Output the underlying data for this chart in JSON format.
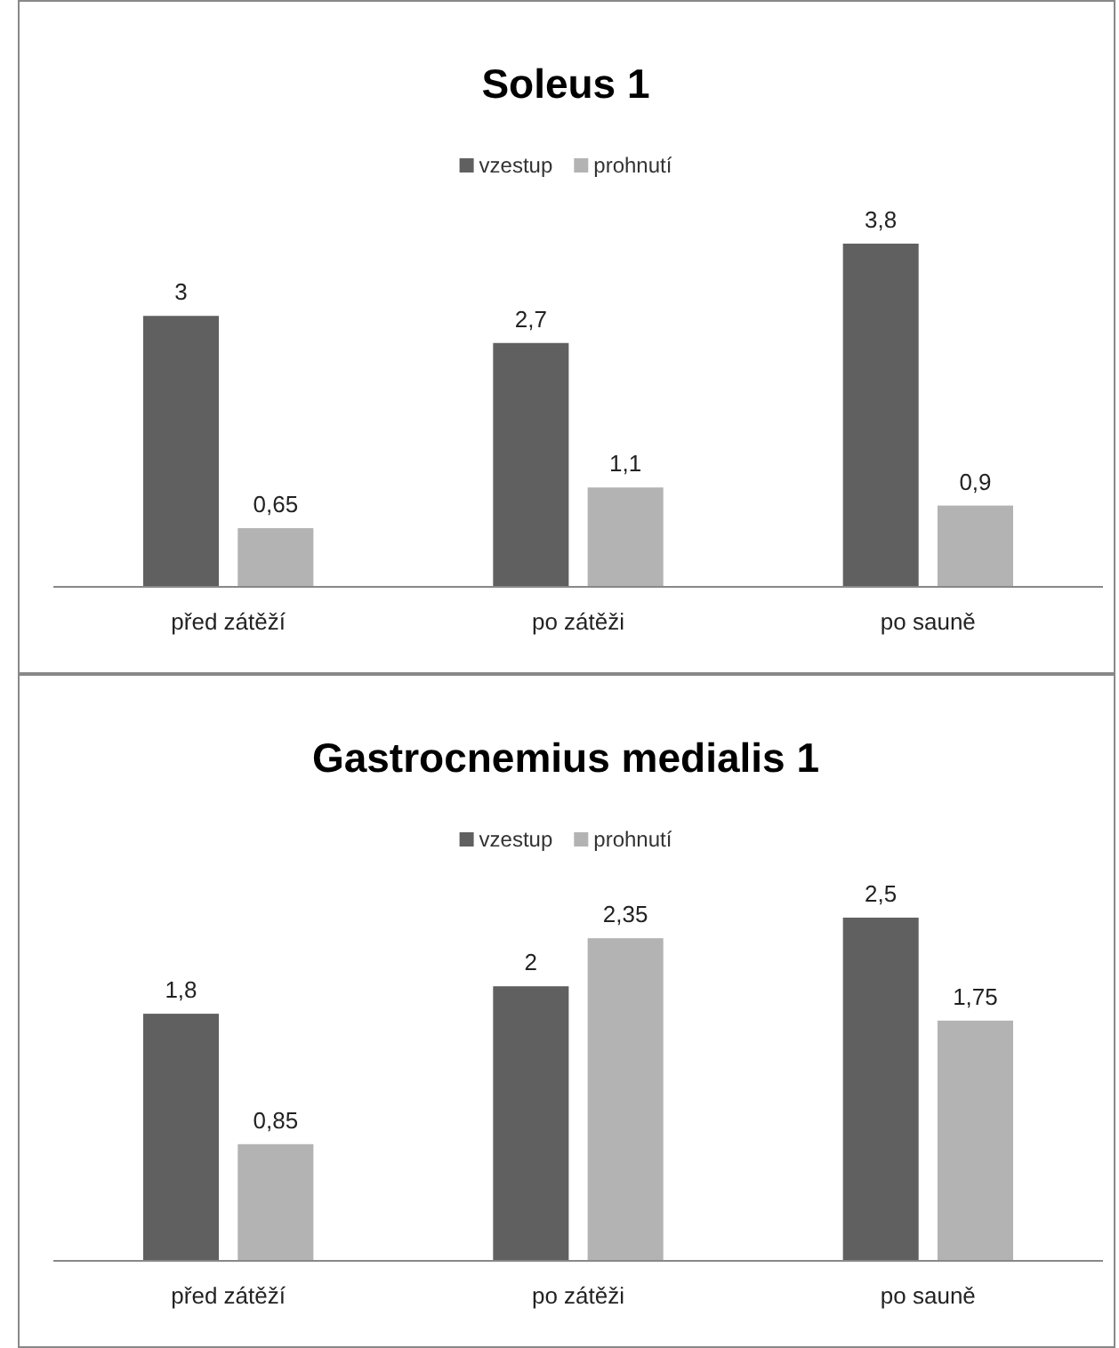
{
  "chart_data": [
    {
      "type": "bar",
      "title": "Soleus 1",
      "categories": [
        "před zátěží",
        "po zátěži",
        "po sauně"
      ],
      "series": [
        {
          "name": "vzestup",
          "color": "#606060",
          "values": [
            3,
            2.7,
            3.8
          ],
          "value_labels": [
            "3",
            "2,7",
            "3,8"
          ]
        },
        {
          "name": "prohnutí",
          "color": "#b3b3b3",
          "values": [
            0.65,
            1.1,
            0.9
          ],
          "value_labels": [
            "0,65",
            "1,1",
            "0,9"
          ]
        }
      ],
      "legend": "top"
    },
    {
      "type": "bar",
      "title": "Gastrocnemius medialis 1",
      "categories": [
        "před zátěží",
        "po zátěži",
        "po sauně"
      ],
      "series": [
        {
          "name": "vzestup",
          "color": "#606060",
          "values": [
            1.8,
            2,
            2.5
          ],
          "value_labels": [
            "1,8",
            "2",
            "2,5"
          ]
        },
        {
          "name": "prohnutí",
          "color": "#b3b3b3",
          "values": [
            0.85,
            2.35,
            1.75
          ],
          "value_labels": [
            "0,85",
            "2,35",
            "1,75"
          ]
        }
      ],
      "legend": "top"
    }
  ]
}
